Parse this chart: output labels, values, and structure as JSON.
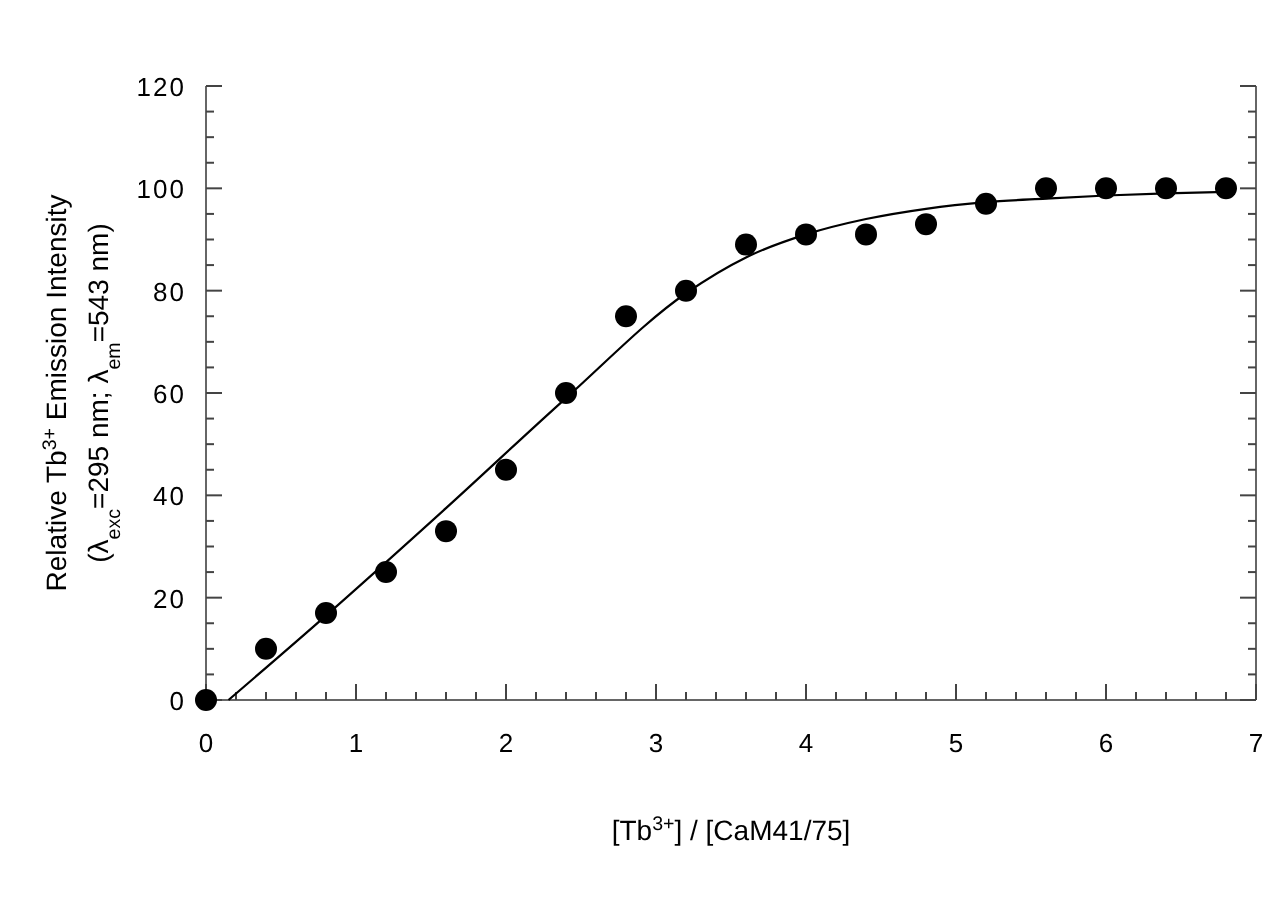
{
  "chart_data": {
    "type": "scatter",
    "xlabel": "[Tb$^{3+}$] / [CaM41/75]",
    "ylabel": "Relative  Tb$^{3+}$ Emission Intensity\n(λ$_{exc}$=295 nm; λ$_{em}$=543 nm)",
    "xlim": [
      0,
      7
    ],
    "ylim": [
      0,
      120
    ],
    "xticks": [
      0,
      1,
      2,
      3,
      4,
      5,
      6,
      7,
      {
        "value": 0.2,
        "label": null
      },
      {
        "value": 0.4,
        "label": null
      },
      {
        "value": 0.6,
        "label": null
      },
      {
        "value": 0.8,
        "label": null
      },
      {
        "value": 1.2,
        "label": null
      },
      {
        "value": 1.4,
        "label": null
      },
      {
        "value": 1.6,
        "label": null
      },
      {
        "value": 1.8,
        "label": null
      },
      {
        "value": 2.2,
        "label": null
      },
      {
        "value": 2.4,
        "label": null
      },
      {
        "value": 2.6,
        "label": null
      },
      {
        "value": 2.8,
        "label": null
      },
      {
        "value": 3.2,
        "label": null
      },
      {
        "value": 3.4,
        "label": null
      },
      {
        "value": 3.6,
        "label": null
      },
      {
        "value": 3.8,
        "label": null
      },
      {
        "value": 4.2,
        "label": null
      },
      {
        "value": 4.4,
        "label": null
      },
      {
        "value": 4.6,
        "label": null
      },
      {
        "value": 4.8,
        "label": null
      },
      {
        "value": 5.2,
        "label": null
      },
      {
        "value": 5.4,
        "label": null
      },
      {
        "value": 5.6,
        "label": null
      },
      {
        "value": 5.8,
        "label": null
      },
      {
        "value": 6.2,
        "label": null
      },
      {
        "value": 6.4,
        "label": null
      },
      {
        "value": 6.6,
        "label": null
      },
      {
        "value": 6.8,
        "label": null
      }
    ],
    "yticks": [
      0,
      20,
      40,
      60,
      80,
      100,
      120,
      {
        "value": 5,
        "label": null
      },
      {
        "value": 10,
        "label": null
      },
      {
        "value": 15,
        "label": null
      },
      {
        "value": 25,
        "label": null
      },
      {
        "value": 30,
        "label": null
      },
      {
        "value": 35,
        "label": null
      },
      {
        "value": 45,
        "label": null
      },
      {
        "value": 50,
        "label": null
      },
      {
        "value": 55,
        "label": null
      },
      {
        "value": 65,
        "label": null
      },
      {
        "value": 70,
        "label": null
      },
      {
        "value": 75,
        "label": null
      },
      {
        "value": 85,
        "label": null
      },
      {
        "value": 90,
        "label": null
      },
      {
        "value": 95,
        "label": null
      },
      {
        "value": 105,
        "label": null
      },
      {
        "value": 110,
        "label": null
      },
      {
        "value": 115,
        "label": null
      }
    ],
    "marker": "circle",
    "series": [
      {
        "color": "#000000",
        "x": [
          0,
          0.4,
          0.8,
          1.2,
          1.6,
          2.0,
          2.4,
          2.8,
          3.2,
          3.6,
          4.0,
          4.4,
          4.8,
          5.2,
          5.6,
          6.0,
          6.4,
          6.8
        ],
        "values": [
          0,
          10,
          17,
          25,
          33,
          45,
          60,
          75,
          80,
          89,
          91,
          91,
          93,
          97,
          100,
          100,
          100,
          100
        ]
      },
      {
        "type": "line",
        "color": "#000000",
        "marker": "none",
        "line_style": "solid",
        "x": [
          0.15,
          0.8,
          1.6,
          2.4,
          3.2,
          3.6,
          4.0,
          4.4,
          4.8,
          5.2,
          5.6,
          6.0,
          6.4,
          6.8
        ],
        "values": [
          0,
          16.5,
          37.5,
          59,
          79.5,
          86.5,
          91,
          94,
          96,
          97.3,
          98,
          98.6,
          99,
          99.3
        ]
      }
    ]
  }
}
